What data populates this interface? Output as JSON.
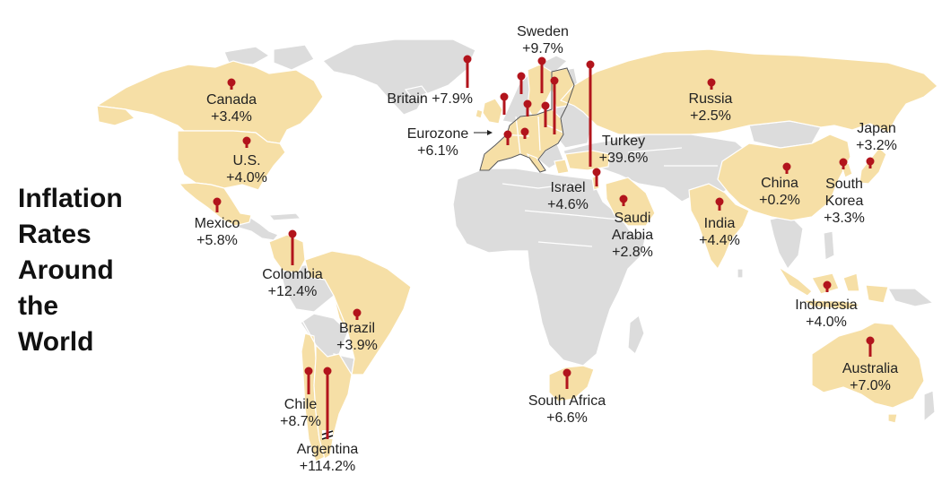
{
  "title": "Inflation\nRates\nAround\nthe\nWorld",
  "colors": {
    "highlight_land": "#f6dfa6",
    "other_land": "#dcdcdc",
    "pin": "#b2141c",
    "background": "#ffffff"
  },
  "countries": [
    {
      "key": "canada",
      "name": "Canada",
      "value_label": "+3.4%",
      "value": 3.4
    },
    {
      "key": "us",
      "name": "U.S.",
      "value_label": "+4.0%",
      "value": 4.0
    },
    {
      "key": "mexico",
      "name": "Mexico",
      "value_label": "+5.8%",
      "value": 5.8
    },
    {
      "key": "colombia",
      "name": "Colombia",
      "value_label": "+12.4%",
      "value": 12.4
    },
    {
      "key": "brazil",
      "name": "Brazil",
      "value_label": "+3.9%",
      "value": 3.9
    },
    {
      "key": "chile",
      "name": "Chile",
      "value_label": "+8.7%",
      "value": 8.7
    },
    {
      "key": "argentina",
      "name": "Argentina",
      "value_label": "+114.2%",
      "value": 114.2
    },
    {
      "key": "britain",
      "name": "Britain",
      "value_label": "+7.9%",
      "value": 7.9
    },
    {
      "key": "sweden",
      "name": "Sweden",
      "value_label": "+9.7%",
      "value": 9.7
    },
    {
      "key": "eurozone",
      "name": "Eurozone",
      "value_label": "+6.1%",
      "value": 6.1
    },
    {
      "key": "turkey",
      "name": "Turkey",
      "value_label": "+39.6%",
      "value": 39.6
    },
    {
      "key": "israel",
      "name": "Israel",
      "value_label": "+4.6%",
      "value": 4.6
    },
    {
      "key": "saudi",
      "name": "Saudi\nArabia",
      "value_label": "+2.8%",
      "value": 2.8
    },
    {
      "key": "russia",
      "name": "Russia",
      "value_label": "+2.5%",
      "value": 2.5
    },
    {
      "key": "india",
      "name": "India",
      "value_label": "+4.4%",
      "value": 4.4
    },
    {
      "key": "china",
      "name": "China",
      "value_label": "+0.2%",
      "value": 0.2
    },
    {
      "key": "south_korea",
      "name": "South\nKorea",
      "value_label": "+3.3%",
      "value": 3.3
    },
    {
      "key": "japan",
      "name": "Japan",
      "value_label": "+3.2%",
      "value": 3.2
    },
    {
      "key": "indonesia",
      "name": "Indonesia",
      "value_label": "+4.0%",
      "value": 4.0
    },
    {
      "key": "australia",
      "name": "Australia",
      "value_label": "+7.0%",
      "value": 7.0
    },
    {
      "key": "south_africa",
      "name": "South Africa",
      "value_label": "+6.6%",
      "value": 6.6
    }
  ]
}
